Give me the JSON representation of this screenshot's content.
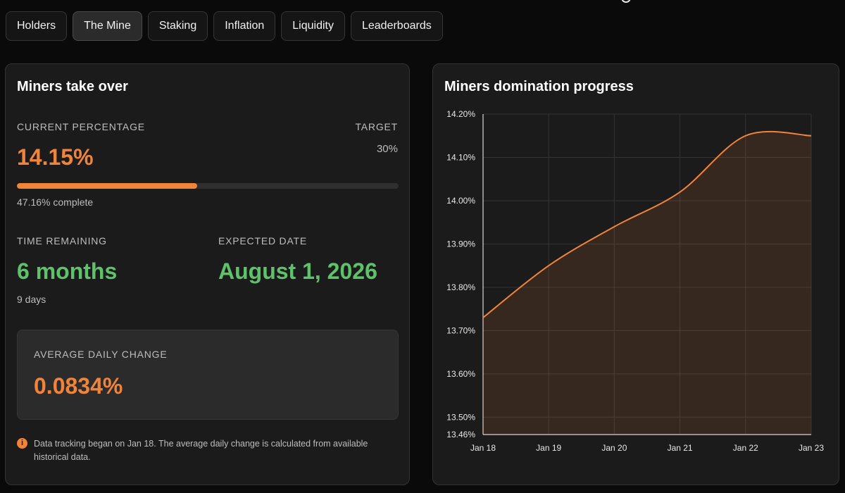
{
  "tabs": [
    {
      "label": "Holders",
      "active": false
    },
    {
      "label": "The Mine",
      "active": true
    },
    {
      "label": "Staking",
      "active": false
    },
    {
      "label": "Inflation",
      "active": false
    },
    {
      "label": "Liquidity",
      "active": false
    },
    {
      "label": "Leaderboards",
      "active": false
    }
  ],
  "left_card": {
    "title": "Miners take over",
    "current_label": "CURRENT PERCENTAGE",
    "current_value": "14.15%",
    "target_label": "TARGET",
    "target_value": "30%",
    "progress_fraction": 0.4716,
    "progress_text": "47.16% complete",
    "time_label": "TIME REMAINING",
    "time_value": "6 months",
    "time_sub": "9 days",
    "expected_label": "EXPECTED DATE",
    "expected_value": "August 1, 2026",
    "avg_label": "AVERAGE DAILY CHANGE",
    "avg_value": "0.0834%",
    "info_icon": "info-icon",
    "note": "Data tracking began on Jan 18. The average daily change is calculated from available historical data."
  },
  "right_card": {
    "title": "Miners domination progress"
  },
  "colors": {
    "accent_orange": "#f0843a",
    "accent_green": "#5ec26a",
    "background": "#0a0a0a",
    "card": "#1b1b1b"
  },
  "chart_data": {
    "type": "area",
    "title": "Miners domination progress",
    "xlabel": "",
    "ylabel": "",
    "x": [
      "Jan 18",
      "Jan 19",
      "Jan 20",
      "Jan 21",
      "Jan 22",
      "Jan 23"
    ],
    "series": [
      {
        "values": [
          13.73,
          13.85,
          13.94,
          14.02,
          14.15,
          14.15
        ]
      }
    ],
    "ylim": [
      13.46,
      14.2
    ],
    "yticks": [
      "14.20%",
      "14.10%",
      "14.00%",
      "13.90%",
      "13.80%",
      "13.70%",
      "13.60%",
      "13.50%",
      "13.46%"
    ],
    "ytick_values": [
      14.2,
      14.1,
      14.0,
      13.9,
      13.8,
      13.7,
      13.6,
      13.5,
      13.46
    ],
    "grid": true,
    "legend": "none"
  }
}
